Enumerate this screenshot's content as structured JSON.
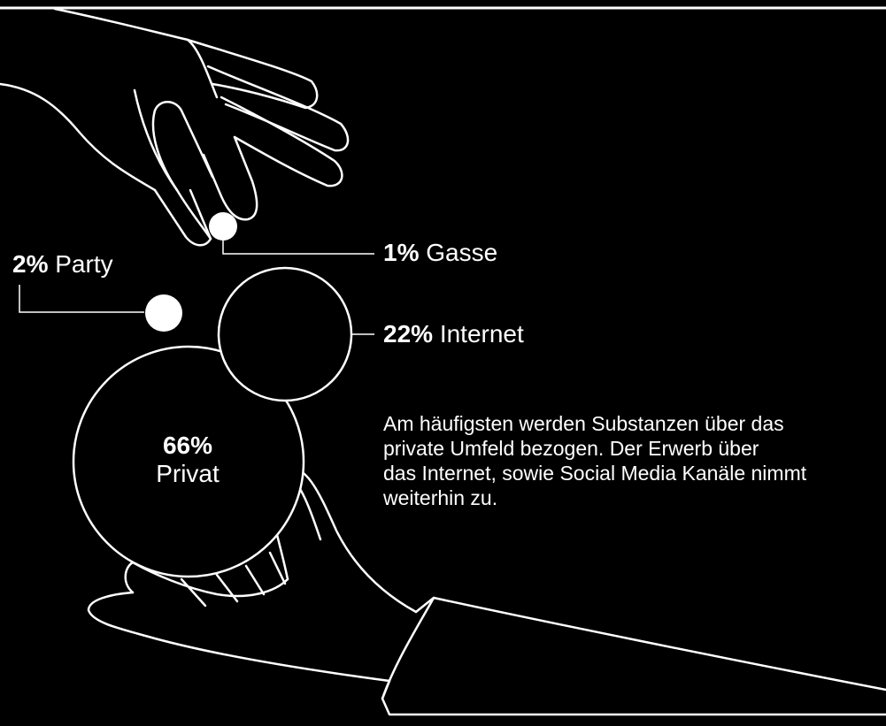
{
  "colors": {
    "background": "#000000",
    "line": "#ffffff",
    "text": "#ffffff"
  },
  "segments": [
    {
      "id": "gasse",
      "percent": "1%",
      "label": "Gasse",
      "value": 1
    },
    {
      "id": "party",
      "percent": "2%",
      "label": "Party",
      "value": 2
    },
    {
      "id": "internet",
      "percent": "22%",
      "label": "Internet",
      "value": 22
    },
    {
      "id": "privat",
      "percent": "66%",
      "label": "Privat",
      "value": 66
    }
  ],
  "description": {
    "lines": [
      "Am häufigsten werden Substanzen über das",
      "private Umfeld bezogen. Der Erwerb über",
      "das Internet, sowie Social Media Kanäle nimmt",
      "weiterhin zu."
    ]
  },
  "icons": {
    "top_hand": "hand-icon",
    "bottom_hand": "hand-icon"
  }
}
